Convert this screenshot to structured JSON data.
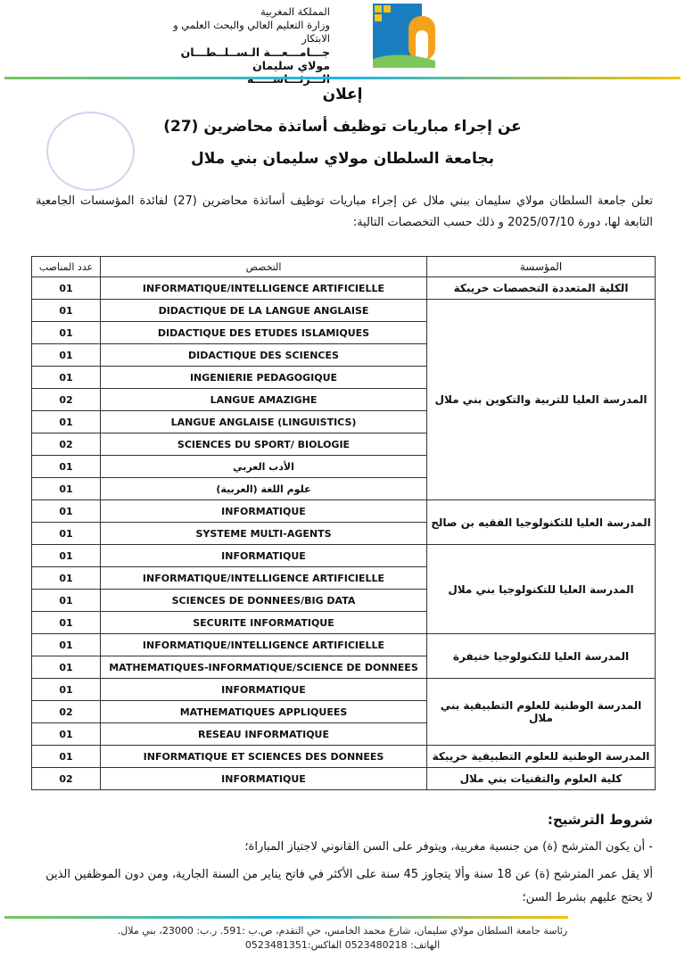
{
  "header": {
    "lines": [
      "المملكة المغربية",
      "وزارة التعليم العالي والبحث العلمي و الابتكار",
      "جـــامـــعـــة الـســلــطـــان مولاي سليمان",
      "الـــرئـــاســـــة"
    ]
  },
  "title": {
    "line1": "إعلان",
    "line2": "عن إجراء مباريات توظيف أساتذة محاضرين (27)",
    "line3": "بجامعة السلطان مولاي سليمان بني ملال"
  },
  "intro": "تعلن جامعة السلطان مولاي سليمان ببني ملال عن إجراء مباريات توظيف أساتذة محاضرين (27) لفائدة المؤسسات الجامعية التابعة لها، دورة 2025/07/10 و ذلك حسب التخصصات التالية:",
  "table": {
    "headers": {
      "count": "عدد المناصب",
      "specialty": "التخصص",
      "institution": "المؤسسة"
    },
    "groups": [
      {
        "institution": "الكلية المتعددة التخصصات خريبكة",
        "rows": [
          [
            "INFORMATIQUE/INTELLIGENCE ARTIFICIELLE",
            "01"
          ]
        ]
      },
      {
        "institution": "المدرسة العليا للتربية والتكوين بني ملال",
        "rows": [
          [
            "DIDACTIQUE DE LA LANGUE ANGLAISE",
            "01"
          ],
          [
            "DIDACTIQUE DES ETUDES ISLAMIQUES",
            "01"
          ],
          [
            "DIDACTIQUE DES SCIENCES",
            "01"
          ],
          [
            "INGENIERIE PEDAGOGIQUE",
            "01"
          ],
          [
            "LANGUE AMAZIGHE",
            "02"
          ],
          [
            "LANGUE ANGLAISE (LINGUISTICS)",
            "01"
          ],
          [
            "SCIENCES DU SPORT/ BIOLOGIE",
            "02"
          ],
          [
            "الأدب العربي",
            "01"
          ],
          [
            "علوم اللغة (العربية)",
            "01"
          ]
        ]
      },
      {
        "institution": "المدرسة العليا للتكنولوجيا الفقيه بن صالح",
        "rows": [
          [
            "INFORMATIQUE",
            "01"
          ],
          [
            "SYSTEME MULTI-AGENTS",
            "01"
          ]
        ]
      },
      {
        "institution": "المدرسة العليا للتكنولوجيا بني ملال",
        "rows": [
          [
            "INFORMATIQUE",
            "01"
          ],
          [
            "INFORMATIQUE/INTELLIGENCE ARTIFICIELLE",
            "01"
          ],
          [
            "SCIENCES DE DONNEES/BIG DATA",
            "01"
          ],
          [
            "SECURITE INFORMATIQUE",
            "01"
          ]
        ]
      },
      {
        "institution": "المدرسة العليا للتكنولوجيا خنيفرة",
        "rows": [
          [
            "INFORMATIQUE/INTELLIGENCE ARTIFICIELLE",
            "01"
          ],
          [
            "MATHEMATIQUES-INFORMATIQUE/SCIENCE DE DONNEES",
            "01"
          ]
        ]
      },
      {
        "institution": "المدرسة الوطنية للعلوم التطبيقية بني ملال",
        "rows": [
          [
            "INFORMATIQUE",
            "01"
          ],
          [
            "MATHEMATIQUES APPLIQUEES",
            "02"
          ],
          [
            "RESEAU INFORMATIQUE",
            "01"
          ]
        ]
      },
      {
        "institution": "المدرسة الوطنية للعلوم التطبيقية خريبكة",
        "rows": [
          [
            "INFORMATIQUE ET SCIENCES DES DONNEES",
            "01"
          ]
        ]
      },
      {
        "institution": "كلية العلوم والتقنيات بني ملال",
        "rows": [
          [
            "INFORMATIQUE",
            "02"
          ]
        ]
      }
    ]
  },
  "conditions": {
    "heading": "شروط الترشيح:",
    "item1": "-    أن يكون المترشح (ة) من جنسية مغربية، ويتوفر على السن القانوني لاجتياز المباراة؛",
    "item2": "ألا يقل عمر المترشح (ة) عن 18 سنة وألا يتجاوز 45 سنة على الأكثر في فاتح يناير من السنة الجارية، ومن دون الموظفين الذين لا يحتج عليهم بشرط السن؛"
  },
  "footer": {
    "address": "رئاسة جامعة السلطان مولاي سليمان، شارع محمد الخامس، حي التقدم، ص.ب :591. ر.ب: 23000، بني ملال.",
    "phone": "الهاتف: 0523480218     الفاكس:0523481351"
  }
}
